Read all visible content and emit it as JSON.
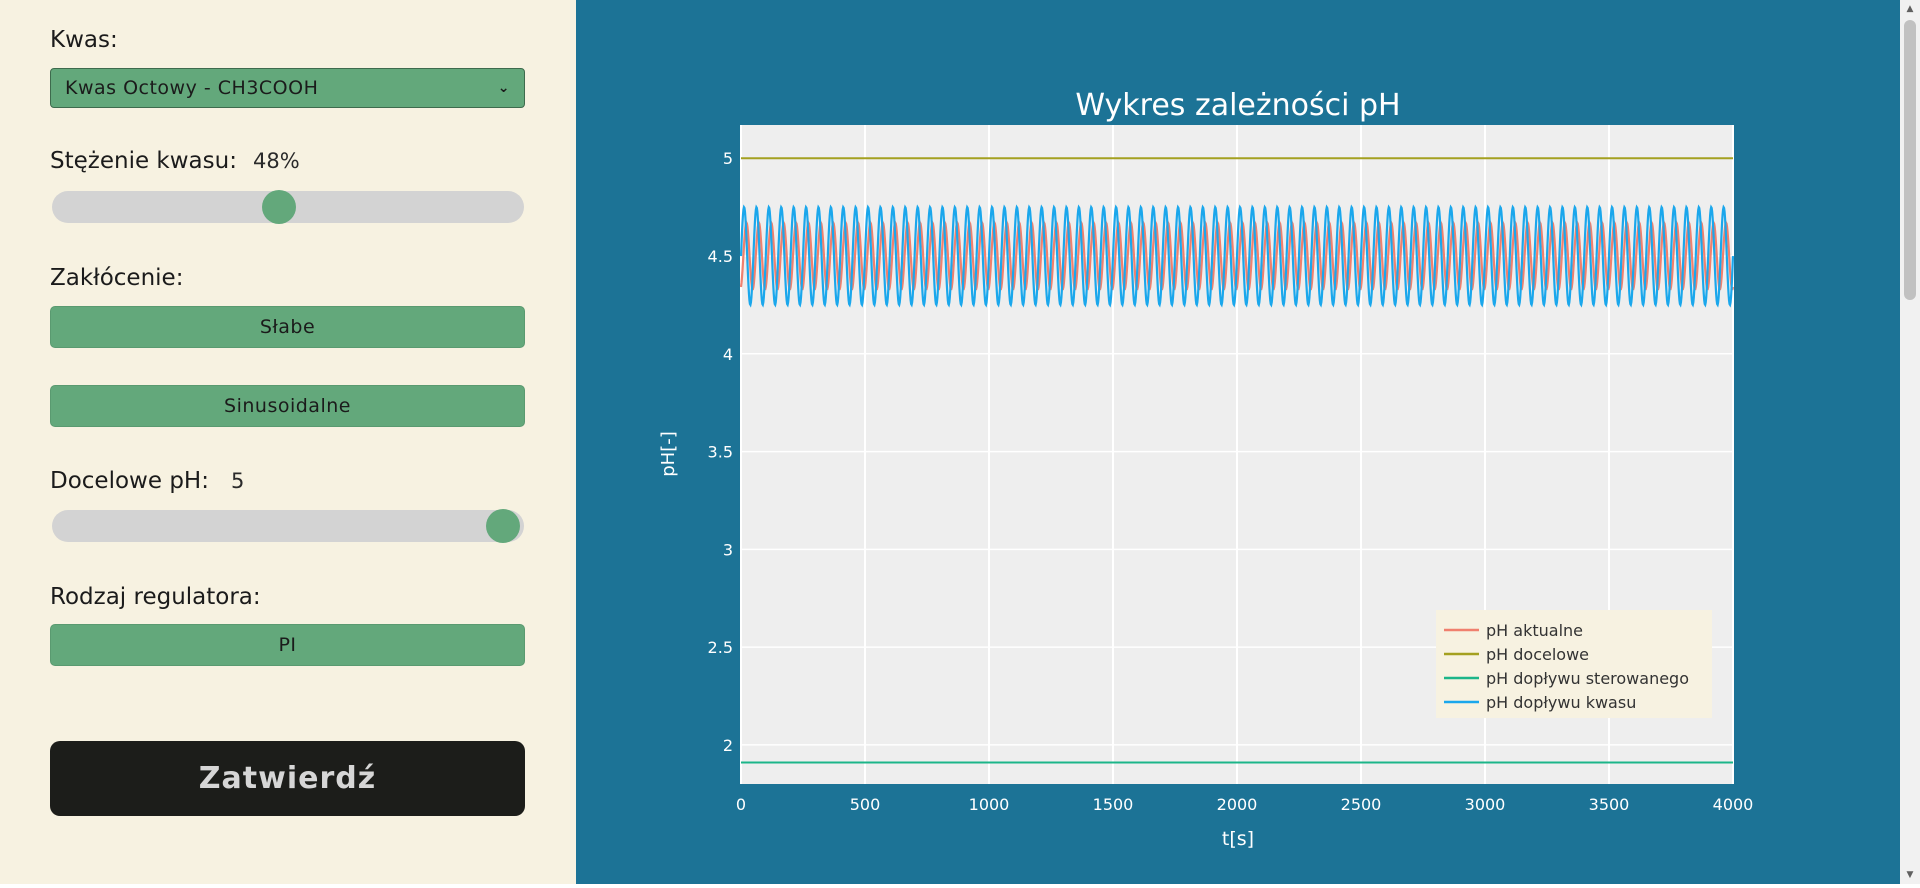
{
  "sidebar": {
    "acid_label": "Kwas:",
    "acid_selected": "Kwas Octowy - CH3COOH",
    "concentration_label": "Stężenie kwasu:",
    "concentration_value": "48%",
    "concentration_level": 0.48,
    "disturbance_label": "Zakłócenie:",
    "disturbance_strength": "Słabe",
    "disturbance_type": "Sinusoidalne",
    "target_label": "Docelowe pH:",
    "target_value": "5",
    "target_level": 1.0,
    "regulator_label": "Rodzaj regulatora:",
    "regulator_value": "PI",
    "submit_label": "Zatwierdź"
  },
  "colors": {
    "sidebar_bg": "#f7f2e1",
    "main_bg": "#1c7396",
    "accent": "#63a87b",
    "plot_bg": "#eeeeee"
  },
  "chart_data": {
    "type": "line",
    "title": "Wykres zależności pH",
    "xlabel": "t[s]",
    "ylabel": "pH[-]",
    "xlim": [
      0,
      4000
    ],
    "ylim": [
      1.8,
      5.17
    ],
    "xticks": [
      "0",
      "500",
      "1000",
      "1500",
      "2000",
      "2500",
      "3000",
      "3500",
      "4000"
    ],
    "yticks": [
      "2",
      "2.5",
      "3",
      "3.5",
      "4",
      "4.5",
      "5"
    ],
    "grid": true,
    "legend_position": "bottom-right",
    "series": [
      {
        "name": "pH aktualne",
        "color": "#f0806e",
        "kind": "sine",
        "center": 4.5,
        "amplitude": 0.17,
        "period": 50,
        "phase": -1.2
      },
      {
        "name": "pH docelowe",
        "color": "#a4a020",
        "kind": "constant",
        "value": 5.0
      },
      {
        "name": "pH dopływu sterowanego",
        "color": "#1cb589",
        "kind": "constant",
        "value": 1.91
      },
      {
        "name": "pH dopływu kwasu",
        "color": "#1aa7ec",
        "kind": "sine",
        "center": 4.5,
        "amplitude": 0.25,
        "period": 50,
        "phase": 0
      }
    ]
  }
}
